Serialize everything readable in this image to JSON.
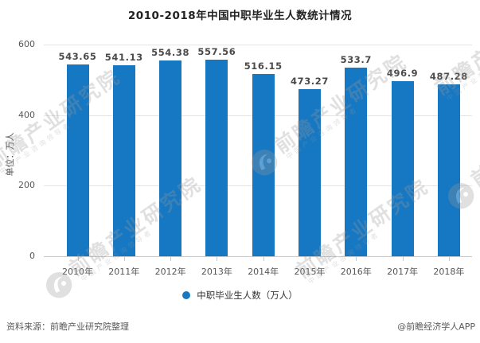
{
  "title": "2010-2018年中国中职毕业生人数统计情况",
  "y_axis": {
    "unit_label": "单位：万人"
  },
  "legend": {
    "label": "中职毕业生人数（万人）"
  },
  "footer": {
    "source": "资料来源：前瞻产业研究院整理",
    "credit": "@前瞻经济学人APP"
  },
  "watermark": {
    "main": "前瞻产业研究院",
    "sub": "中国产业咨询领导者",
    "logo_icon": "qianzhan-logo-icon"
  },
  "colors": {
    "bar": "#1677c2",
    "grid": "#e4e4e4",
    "axis": "#c9c9c9",
    "value_label": "#4a4a4a",
    "watermark": "#9a9a9a"
  },
  "chart_data": {
    "type": "bar",
    "title": "2010-2018年中国中职毕业生人数统计情况",
    "categories": [
      "2010年",
      "2011年",
      "2012年",
      "2013年",
      "2014年",
      "2015年",
      "2016年",
      "2017年",
      "2018年"
    ],
    "series": [
      {
        "name": "中职毕业生人数（万人）",
        "values": [
          543.65,
          541.13,
          554.38,
          557.56,
          516.15,
          473.27,
          533.7,
          496.9,
          487.28
        ]
      }
    ],
    "xlabel": "",
    "ylabel": "单位：万人",
    "ylim": [
      0,
      600
    ],
    "yticks": [
      0,
      200,
      400,
      600
    ],
    "grid": true,
    "legend_position": "bottom",
    "value_labels_shown": true
  }
}
